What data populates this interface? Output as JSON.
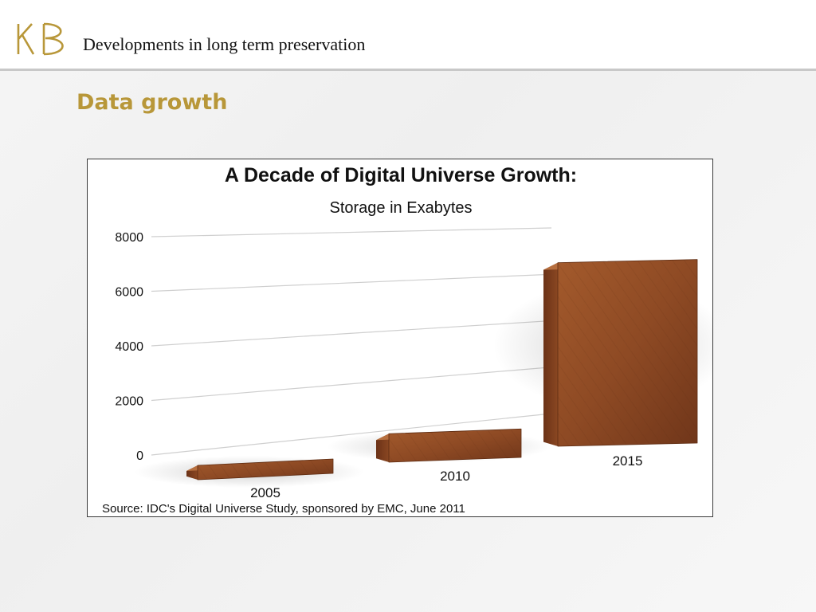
{
  "header": {
    "logo_text": "KB",
    "title": "Developments in long term preservation"
  },
  "slide": {
    "title": "Data growth"
  },
  "colors": {
    "accent_gold": "#b89739",
    "bar_brown": "#8e4a24"
  },
  "chart_data": {
    "type": "bar",
    "title": "A Decade of Digital Universe Growth:",
    "subtitle": "Storage in Exabytes",
    "categories": [
      "2005",
      "2010",
      "2015"
    ],
    "values": [
      130,
      1227,
      7910
    ],
    "ylim": [
      0,
      8000
    ],
    "yticks": [
      "0",
      "2000",
      "4000",
      "6000",
      "8000"
    ],
    "grid": true,
    "legend": "none",
    "source": "Source: IDC's Digital Universe Study, sponsored by EMC, June 2011"
  }
}
